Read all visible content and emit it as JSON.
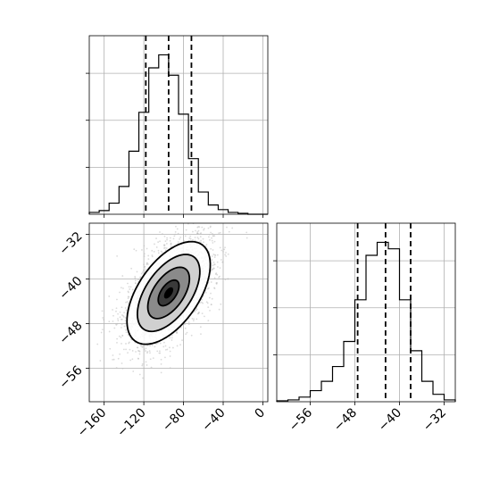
{
  "chart_data": {
    "type": "corner",
    "parameters": [
      {
        "hist_bin_edges": [
          -175,
          -165,
          -155,
          -145,
          -135,
          -125,
          -115,
          -105,
          -95,
          -85,
          -75,
          -65,
          -55,
          -45,
          -35,
          -25,
          -15,
          -5,
          5
        ],
        "hist_counts": [
          2,
          4,
          12,
          30,
          68,
          110,
          158,
          172,
          150,
          108,
          60,
          24,
          10,
          5,
          2,
          1,
          0,
          0
        ],
        "quantiles": [
          -118,
          -95,
          -72
        ],
        "xlim": [
          -175,
          5
        ],
        "xticks": [
          -160,
          -120,
          -80,
          -40,
          0
        ],
        "xtick_labels": [
          "−160",
          "−120",
          "−80",
          "−40",
          "0"
        ]
      },
      {
        "hist_bin_edges": [
          -62,
          -60,
          -58,
          -56,
          -54,
          -52,
          -50,
          -48,
          -46,
          -44,
          -42,
          -40,
          -38,
          -36,
          -34,
          -32,
          -30
        ],
        "hist_counts": [
          1,
          2,
          5,
          12,
          22,
          38,
          65,
          110,
          158,
          172,
          165,
          110,
          55,
          22,
          8,
          2
        ],
        "quantiles": [
          -47.5,
          -42.5,
          -38
        ],
        "xlim": [
          -62,
          -30
        ],
        "xticks": [
          -56,
          -48,
          -40,
          -32
        ],
        "xtick_labels": [
          "−56",
          "−48",
          "−40",
          "−32"
        ]
      }
    ],
    "joint": {
      "x_param": 0,
      "y_param": 1,
      "ylim": [
        -62,
        -30
      ],
      "yticks": [
        -56,
        -48,
        -40,
        -32
      ],
      "ytick_labels": [
        "−56",
        "−48",
        "−40",
        "−32"
      ],
      "mean": [
        -95,
        -42.5
      ],
      "std": [
        21,
        4.6
      ],
      "correlation": 0.55,
      "n_samples": 2500,
      "contour_levels_sigma": [
        0.5,
        1.0,
        1.5,
        2.0
      ]
    },
    "grid": true
  }
}
